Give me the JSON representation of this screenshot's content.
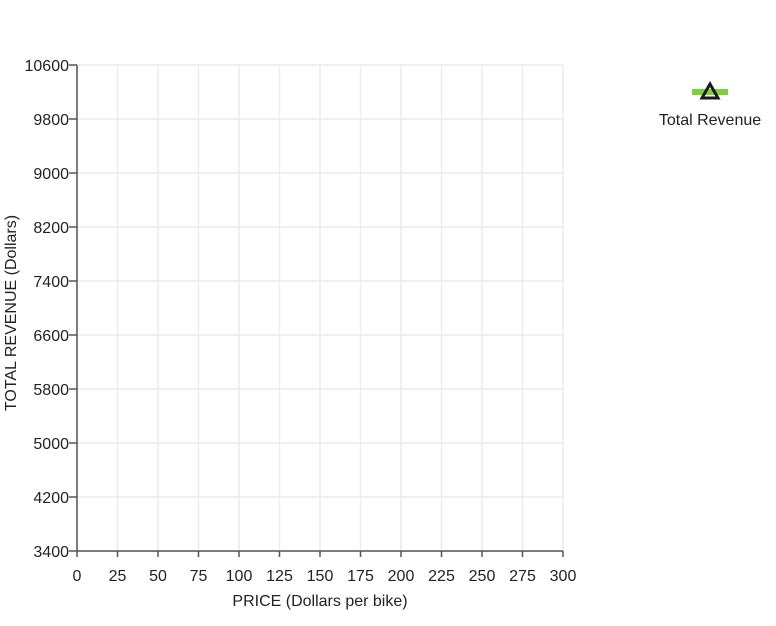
{
  "chart_data": {
    "type": "line",
    "title": "",
    "xlabel": "PRICE (Dollars per bike)",
    "ylabel": "TOTAL REVENUE (Dollars)",
    "xlim": [
      0,
      300
    ],
    "ylim": [
      3400,
      10600
    ],
    "x_ticks": [
      0,
      25,
      50,
      75,
      100,
      125,
      150,
      175,
      200,
      225,
      250,
      275,
      300
    ],
    "y_ticks": [
      3400,
      4200,
      5000,
      5800,
      6600,
      7400,
      8200,
      9000,
      9800,
      10600
    ],
    "grid": true,
    "legend_position": "right",
    "series": [
      {
        "name": "Total Revenue",
        "color": "#7dd03c",
        "marker": "triangle",
        "marker_color": "#1a1a1a",
        "points": []
      }
    ]
  },
  "legend": {
    "label": "Total Revenue",
    "icon": "triangle-marker-icon"
  },
  "colors": {
    "grid": "#ececec",
    "axis": "#555555",
    "series": "#7dd03c"
  }
}
